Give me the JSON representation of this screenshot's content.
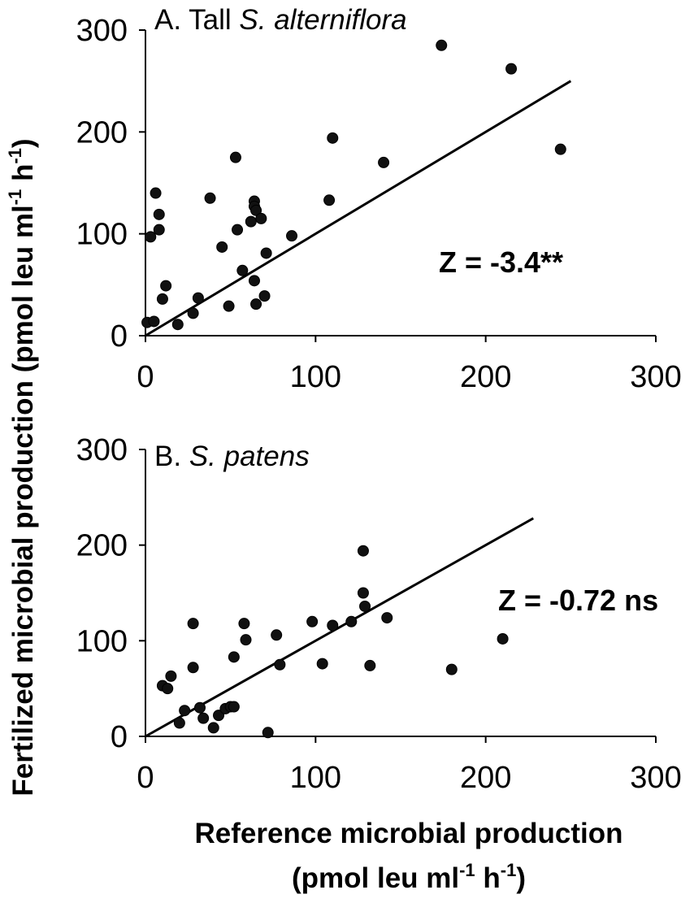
{
  "chart_data": [
    {
      "type": "scatter",
      "title_prefix": "A. Tall",
      "title_species": "S. alterniflora",
      "annotation": "Z = -3.4**",
      "xlim": [
        0,
        300
      ],
      "ylim": [
        0,
        300
      ],
      "xticks": [
        "0",
        "100",
        "200",
        "300"
      ],
      "yticks": [
        "0",
        "100",
        "200",
        "300"
      ],
      "fit_line": {
        "x": [
          0,
          250
        ],
        "y": [
          0,
          250
        ]
      },
      "series": [
        {
          "points": [
            [
              1,
              13
            ],
            [
              3,
              97
            ],
            [
              5,
              14
            ],
            [
              6,
              140
            ],
            [
              8,
              104
            ],
            [
              8,
              119
            ],
            [
              10,
              36
            ],
            [
              12,
              49
            ],
            [
              19,
              11
            ],
            [
              28,
              22
            ],
            [
              31,
              37
            ],
            [
              38,
              135
            ],
            [
              45,
              87
            ],
            [
              49,
              29
            ],
            [
              53,
              175
            ],
            [
              54,
              104
            ],
            [
              57,
              64
            ],
            [
              62,
              112
            ],
            [
              64,
              132
            ],
            [
              64,
              127
            ],
            [
              64,
              54
            ],
            [
              65,
              123
            ],
            [
              65,
              31
            ],
            [
              68,
              115
            ],
            [
              70,
              39
            ],
            [
              71,
              81
            ],
            [
              86,
              98
            ],
            [
              108,
              133
            ],
            [
              110,
              194
            ],
            [
              140,
              170
            ],
            [
              174,
              285
            ],
            [
              215,
              262
            ],
            [
              244,
              183
            ]
          ]
        }
      ]
    },
    {
      "type": "scatter",
      "title_prefix": "B.",
      "title_species": "S. patens",
      "annotation": "Z = -0.72 ns",
      "xlim": [
        0,
        300
      ],
      "ylim": [
        0,
        300
      ],
      "xticks": [
        "0",
        "100",
        "200",
        "300"
      ],
      "yticks": [
        "0",
        "100",
        "200",
        "300"
      ],
      "fit_line": {
        "x": [
          0,
          228
        ],
        "y": [
          0,
          228
        ]
      },
      "series": [
        {
          "points": [
            [
              10,
              53
            ],
            [
              13,
              50
            ],
            [
              15,
              63
            ],
            [
              20,
              14
            ],
            [
              23,
              27
            ],
            [
              28,
              118
            ],
            [
              28,
              72
            ],
            [
              32,
              30
            ],
            [
              34,
              19
            ],
            [
              40,
              9
            ],
            [
              43,
              22
            ],
            [
              47,
              29
            ],
            [
              50,
              31
            ],
            [
              52,
              83
            ],
            [
              52,
              31
            ],
            [
              58,
              118
            ],
            [
              59,
              101
            ],
            [
              72,
              4
            ],
            [
              77,
              106
            ],
            [
              79,
              75
            ],
            [
              98,
              120
            ],
            [
              104,
              76
            ],
            [
              110,
              116
            ],
            [
              121,
              120
            ],
            [
              128,
              194
            ],
            [
              128,
              150
            ],
            [
              129,
              136
            ],
            [
              132,
              74
            ],
            [
              142,
              124
            ],
            [
              180,
              70
            ],
            [
              210,
              102
            ]
          ]
        }
      ]
    }
  ],
  "ylabel": {
    "base": "Fertilized microbial production (pmol leu ml",
    "sup1": "-1",
    "mid": " h",
    "sup2": "-1",
    "end": ")"
  },
  "xlabel": {
    "line1": "Reference microbial production",
    "line2_base": "(pmol leu ml",
    "sup1": "-1",
    "line2_mid": " h",
    "sup2": "-1",
    "line2_end": ")"
  }
}
